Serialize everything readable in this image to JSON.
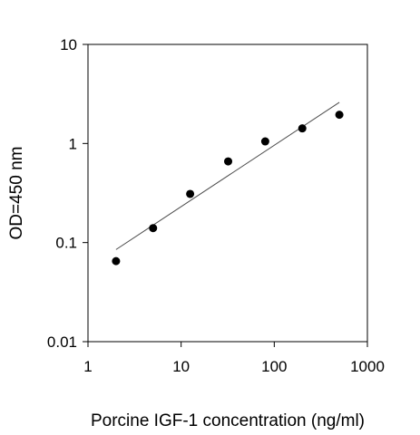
{
  "chart_data": {
    "type": "scatter",
    "title": "",
    "xlabel": "Porcine IGF-1 concentration (ng/ml)",
    "ylabel": "OD=450 nm",
    "x_scale": "log",
    "y_scale": "log",
    "xlim": [
      1,
      1000
    ],
    "ylim": [
      0.01,
      10
    ],
    "x_ticks": [
      "1",
      "10",
      "100",
      "1000"
    ],
    "y_ticks": [
      "0.01",
      "0.1",
      "1",
      "10"
    ],
    "grid": false,
    "series": [
      {
        "type": "scatter",
        "x": [
          2,
          5,
          12.5,
          32,
          80,
          200,
          500
        ],
        "y": [
          0.065,
          0.14,
          0.31,
          0.66,
          1.05,
          1.42,
          1.95
        ]
      },
      {
        "type": "line",
        "x": [
          2,
          500
        ],
        "y": [
          0.085,
          2.6
        ]
      }
    ],
    "colors": {
      "marker": "#000000",
      "line": "#4a4a4a",
      "axis": "#000000"
    }
  }
}
